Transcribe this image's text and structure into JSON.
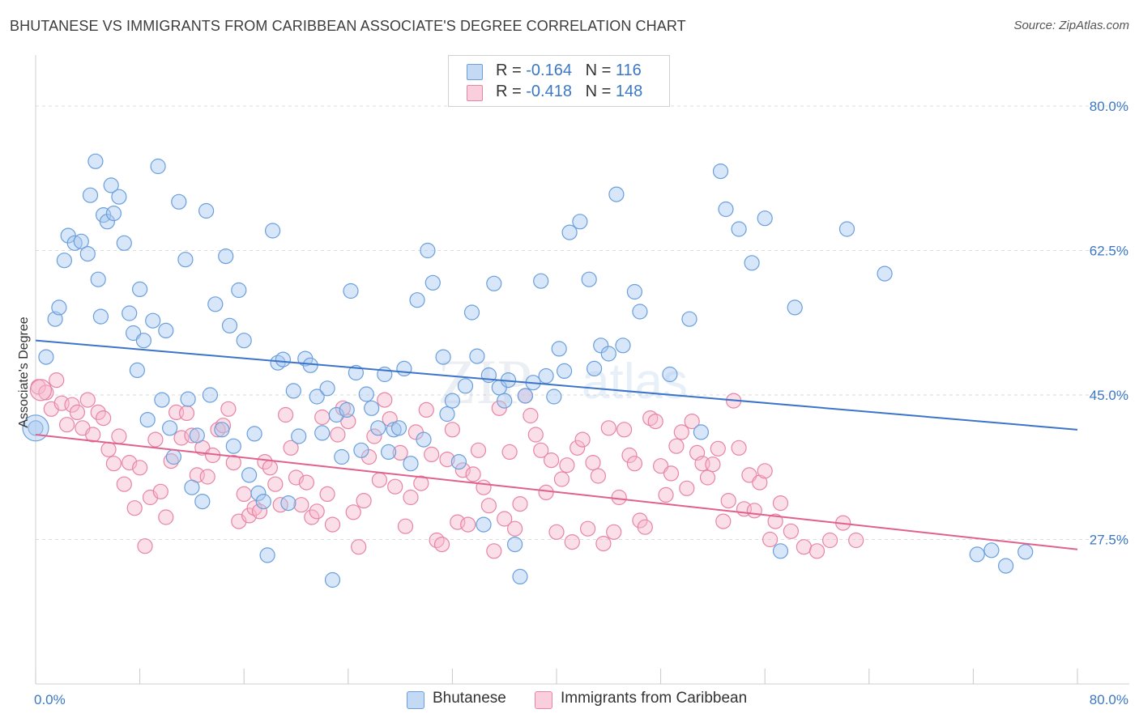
{
  "header": {
    "title": "BHUTANESE VS IMMIGRANTS FROM CARIBBEAN ASSOCIATE'S DEGREE CORRELATION CHART",
    "source": "Source: ZipAtlas.com"
  },
  "legend": {
    "rows": [
      {
        "r_label": "R = ",
        "r_value": "-0.164",
        "n_label": "N = ",
        "n_value": "116",
        "color": "#a7c8ef"
      },
      {
        "r_label": "R = ",
        "r_value": "-0.418",
        "n_label": "N = ",
        "n_value": "148",
        "color": "#f6b8cc"
      }
    ]
  },
  "bottom_legend": [
    {
      "label": "Bhutanese",
      "color": "#a7c8ef"
    },
    {
      "label": "Immigrants from Caribbean",
      "color": "#f6b8cc"
    }
  ],
  "watermark": {
    "zip": "ZIP",
    "atlas": "atlas"
  },
  "chart_data": {
    "type": "scatter",
    "title": "BHUTANESE VS IMMIGRANTS FROM CARIBBEAN ASSOCIATE'S DEGREE CORRELATION CHART",
    "xlabel": "",
    "ylabel": "Associate's Degree",
    "xlim": [
      0,
      80
    ],
    "ylim": [
      10,
      85
    ],
    "x_tick_labels": [
      "0.0%",
      "80.0%"
    ],
    "y_ticks": [
      27.5,
      45.0,
      62.5,
      80.0
    ],
    "y_tick_labels": [
      "27.5%",
      "45.0%",
      "62.5%",
      "80.0%"
    ],
    "grid": true,
    "colors": {
      "blue_fill": "#a7c8ef",
      "blue_stroke": "#6a9fdc",
      "blue_line": "#3b74c9",
      "pink_fill": "#f6b8cc",
      "pink_stroke": "#e884a4",
      "pink_line": "#e0628c",
      "tick_label": "#3b78c4"
    },
    "series": [
      {
        "name": "Bhutanese",
        "trend": {
          "x": [
            0,
            80
          ],
          "y": [
            51.6,
            40.8
          ]
        },
        "points": [
          [
            0.0,
            41
          ],
          [
            0.8,
            49.6
          ],
          [
            1.5,
            54.2
          ],
          [
            1.8,
            55.6
          ],
          [
            2.2,
            61.3
          ],
          [
            2.5,
            64.3
          ],
          [
            3.0,
            63.4
          ],
          [
            3.5,
            63.6
          ],
          [
            4.0,
            62.1
          ],
          [
            4.2,
            69.2
          ],
          [
            4.6,
            73.3
          ],
          [
            4.8,
            59.0
          ],
          [
            5.0,
            54.5
          ],
          [
            5.2,
            66.8
          ],
          [
            5.5,
            66.0
          ],
          [
            5.8,
            70.4
          ],
          [
            6.0,
            67.0
          ],
          [
            6.4,
            69.0
          ],
          [
            6.8,
            63.4
          ],
          [
            7.2,
            54.9
          ],
          [
            7.5,
            52.5
          ],
          [
            7.8,
            48.0
          ],
          [
            8.0,
            57.8
          ],
          [
            8.3,
            51.6
          ],
          [
            8.6,
            42.0
          ],
          [
            9.0,
            54.0
          ],
          [
            9.4,
            72.7
          ],
          [
            9.7,
            44.4
          ],
          [
            10.0,
            52.8
          ],
          [
            10.3,
            41.0
          ],
          [
            10.6,
            37.5
          ],
          [
            11.0,
            68.4
          ],
          [
            11.5,
            61.4
          ],
          [
            11.7,
            44.5
          ],
          [
            12.0,
            33.8
          ],
          [
            12.4,
            40.1
          ],
          [
            12.8,
            32.1
          ],
          [
            13.1,
            67.3
          ],
          [
            13.4,
            45.0
          ],
          [
            13.8,
            56.0
          ],
          [
            14.3,
            40.8
          ],
          [
            14.6,
            61.8
          ],
          [
            14.9,
            53.4
          ],
          [
            15.2,
            38.8
          ],
          [
            15.6,
            57.7
          ],
          [
            16.0,
            51.6
          ],
          [
            16.4,
            35.3
          ],
          [
            16.8,
            40.3
          ],
          [
            17.1,
            33.1
          ],
          [
            17.5,
            32.1
          ],
          [
            17.8,
            25.6
          ],
          [
            18.2,
            64.9
          ],
          [
            18.6,
            48.9
          ],
          [
            19.0,
            49.3
          ],
          [
            19.4,
            31.9
          ],
          [
            19.8,
            45.5
          ],
          [
            20.2,
            40.0
          ],
          [
            20.7,
            49.4
          ],
          [
            21.1,
            48.6
          ],
          [
            21.6,
            44.8
          ],
          [
            22.0,
            40.4
          ],
          [
            22.4,
            45.8
          ],
          [
            22.8,
            22.6
          ],
          [
            23.1,
            42.6
          ],
          [
            23.5,
            37.5
          ],
          [
            23.9,
            43.2
          ],
          [
            24.2,
            57.6
          ],
          [
            24.6,
            47.7
          ],
          [
            25.0,
            38.3
          ],
          [
            25.4,
            45.1
          ],
          [
            25.8,
            43.4
          ],
          [
            26.3,
            41.0
          ],
          [
            26.8,
            47.5
          ],
          [
            27.1,
            38.1
          ],
          [
            27.5,
            40.8
          ],
          [
            27.9,
            41.0
          ],
          [
            28.3,
            48.2
          ],
          [
            28.8,
            36.7
          ],
          [
            29.3,
            56.5
          ],
          [
            29.8,
            39.6
          ],
          [
            30.1,
            62.5
          ],
          [
            30.5,
            58.6
          ],
          [
            31.3,
            49.6
          ],
          [
            31.6,
            42.7
          ],
          [
            32.0,
            44.3
          ],
          [
            32.5,
            36.9
          ],
          [
            33.0,
            46.1
          ],
          [
            33.5,
            55.0
          ],
          [
            33.9,
            49.7
          ],
          [
            34.4,
            29.3
          ],
          [
            34.8,
            47.4
          ],
          [
            35.2,
            58.5
          ],
          [
            35.6,
            45.9
          ],
          [
            36.0,
            44.3
          ],
          [
            36.3,
            46.8
          ],
          [
            36.8,
            26.9
          ],
          [
            37.2,
            23.0
          ],
          [
            37.6,
            44.9
          ],
          [
            38.2,
            46.5
          ],
          [
            38.8,
            58.8
          ],
          [
            39.2,
            47.3
          ],
          [
            39.8,
            44.8
          ],
          [
            40.2,
            50.6
          ],
          [
            40.6,
            47.9
          ],
          [
            41.0,
            64.7
          ],
          [
            41.8,
            66.0
          ],
          [
            42.5,
            59.0
          ],
          [
            42.9,
            48.2
          ],
          [
            43.4,
            51.0
          ],
          [
            44.0,
            50.0
          ],
          [
            44.6,
            69.3
          ],
          [
            45.1,
            51.0
          ],
          [
            46.0,
            57.5
          ],
          [
            46.4,
            55.1
          ],
          [
            48.7,
            47.5
          ],
          [
            50.2,
            54.2
          ],
          [
            51.1,
            40.5
          ],
          [
            52.6,
            72.1
          ],
          [
            53.0,
            67.5
          ],
          [
            54.0,
            65.1
          ],
          [
            55.0,
            61.0
          ],
          [
            56.0,
            66.4
          ],
          [
            57.2,
            26.1
          ],
          [
            58.3,
            55.6
          ],
          [
            62.3,
            65.1
          ],
          [
            65.2,
            59.7
          ],
          [
            72.3,
            25.7
          ],
          [
            73.4,
            26.2
          ],
          [
            74.5,
            24.3
          ],
          [
            76.0,
            26.0
          ]
        ]
      },
      {
        "name": "Immigrants from Caribbean",
        "trend": {
          "x": [
            0,
            80
          ],
          "y": [
            40.2,
            26.3
          ]
        },
        "points": [
          [
            0.2,
            46.0
          ],
          [
            0.8,
            45.3
          ],
          [
            1.2,
            43.3
          ],
          [
            1.6,
            46.8
          ],
          [
            2.0,
            44.0
          ],
          [
            2.4,
            41.4
          ],
          [
            2.8,
            43.8
          ],
          [
            3.2,
            42.9
          ],
          [
            3.6,
            41.0
          ],
          [
            4.0,
            44.4
          ],
          [
            4.4,
            40.2
          ],
          [
            4.8,
            42.9
          ],
          [
            5.2,
            42.2
          ],
          [
            5.6,
            38.4
          ],
          [
            6.0,
            36.7
          ],
          [
            6.4,
            40.0
          ],
          [
            6.8,
            34.2
          ],
          [
            7.2,
            36.8
          ],
          [
            7.6,
            31.3
          ],
          [
            8.0,
            36.2
          ],
          [
            8.4,
            26.7
          ],
          [
            8.8,
            32.6
          ],
          [
            9.2,
            39.6
          ],
          [
            9.6,
            33.3
          ],
          [
            10.0,
            30.2
          ],
          [
            10.4,
            37.0
          ],
          [
            10.8,
            42.9
          ],
          [
            11.2,
            39.8
          ],
          [
            11.6,
            42.8
          ],
          [
            12.0,
            40.1
          ],
          [
            12.4,
            35.3
          ],
          [
            12.8,
            38.6
          ],
          [
            13.2,
            35.1
          ],
          [
            13.6,
            37.7
          ],
          [
            14.0,
            40.8
          ],
          [
            14.4,
            41.3
          ],
          [
            14.8,
            43.3
          ],
          [
            15.2,
            36.8
          ],
          [
            15.6,
            29.7
          ],
          [
            16.0,
            33.0
          ],
          [
            16.4,
            30.4
          ],
          [
            16.8,
            31.3
          ],
          [
            17.2,
            30.9
          ],
          [
            17.6,
            36.9
          ],
          [
            18.0,
            36.2
          ],
          [
            18.4,
            34.2
          ],
          [
            18.8,
            31.7
          ],
          [
            19.2,
            42.6
          ],
          [
            19.6,
            38.6
          ],
          [
            20.0,
            35.0
          ],
          [
            20.4,
            31.7
          ],
          [
            20.8,
            34.4
          ],
          [
            21.2,
            30.2
          ],
          [
            21.6,
            30.9
          ],
          [
            22.0,
            42.3
          ],
          [
            22.4,
            33.0
          ],
          [
            22.8,
            29.3
          ],
          [
            23.2,
            40.2
          ],
          [
            23.6,
            43.4
          ],
          [
            24.0,
            41.8
          ],
          [
            24.4,
            30.8
          ],
          [
            24.8,
            26.6
          ],
          [
            25.2,
            32.2
          ],
          [
            25.6,
            37.5
          ],
          [
            26.0,
            40.0
          ],
          [
            26.4,
            34.7
          ],
          [
            26.8,
            44.4
          ],
          [
            27.2,
            42.1
          ],
          [
            27.6,
            33.9
          ],
          [
            28.0,
            38.0
          ],
          [
            28.4,
            29.1
          ],
          [
            28.8,
            32.6
          ],
          [
            29.2,
            40.5
          ],
          [
            29.6,
            34.3
          ],
          [
            30.0,
            43.2
          ],
          [
            30.4,
            37.8
          ],
          [
            30.8,
            27.4
          ],
          [
            31.2,
            26.9
          ],
          [
            31.6,
            37.2
          ],
          [
            32.0,
            40.8
          ],
          [
            32.4,
            29.6
          ],
          [
            32.8,
            35.9
          ],
          [
            33.2,
            29.3
          ],
          [
            33.6,
            35.4
          ],
          [
            34.0,
            38.3
          ],
          [
            34.4,
            33.8
          ],
          [
            34.8,
            31.6
          ],
          [
            35.2,
            26.1
          ],
          [
            35.6,
            43.4
          ],
          [
            36.0,
            30.0
          ],
          [
            36.4,
            38.1
          ],
          [
            36.8,
            28.8
          ],
          [
            37.2,
            31.8
          ],
          [
            37.6,
            44.9
          ],
          [
            38.0,
            42.5
          ],
          [
            38.4,
            40.2
          ],
          [
            38.8,
            38.3
          ],
          [
            39.2,
            33.2
          ],
          [
            39.6,
            37.1
          ],
          [
            40.0,
            28.4
          ],
          [
            40.4,
            34.8
          ],
          [
            40.8,
            36.5
          ],
          [
            41.2,
            27.2
          ],
          [
            41.6,
            38.6
          ],
          [
            42.0,
            39.6
          ],
          [
            42.4,
            28.8
          ],
          [
            42.8,
            36.8
          ],
          [
            43.2,
            35.2
          ],
          [
            43.6,
            27.0
          ],
          [
            44.0,
            41.0
          ],
          [
            44.4,
            28.4
          ],
          [
            44.8,
            32.6
          ],
          [
            45.2,
            40.8
          ],
          [
            45.6,
            37.7
          ],
          [
            46.0,
            36.7
          ],
          [
            46.4,
            29.8
          ],
          [
            46.8,
            29.0
          ],
          [
            47.2,
            42.2
          ],
          [
            47.6,
            41.8
          ],
          [
            48.0,
            36.4
          ],
          [
            48.4,
            32.9
          ],
          [
            48.8,
            35.5
          ],
          [
            49.2,
            38.8
          ],
          [
            49.6,
            40.5
          ],
          [
            50.0,
            33.7
          ],
          [
            50.4,
            41.8
          ],
          [
            50.8,
            38.0
          ],
          [
            51.2,
            36.7
          ],
          [
            51.6,
            35.0
          ],
          [
            52.0,
            36.6
          ],
          [
            52.4,
            38.5
          ],
          [
            52.8,
            29.7
          ],
          [
            53.2,
            32.2
          ],
          [
            53.6,
            44.3
          ],
          [
            54.0,
            38.6
          ],
          [
            54.4,
            31.2
          ],
          [
            54.8,
            35.3
          ],
          [
            55.2,
            31.0
          ],
          [
            55.6,
            34.4
          ],
          [
            56.0,
            35.8
          ],
          [
            56.4,
            27.5
          ],
          [
            56.8,
            29.7
          ],
          [
            57.2,
            31.9
          ],
          [
            58.0,
            28.5
          ],
          [
            59.0,
            26.6
          ],
          [
            60.0,
            26.1
          ],
          [
            61.0,
            27.4
          ],
          [
            62.0,
            29.5
          ],
          [
            63.0,
            27.4
          ]
        ]
      }
    ]
  }
}
